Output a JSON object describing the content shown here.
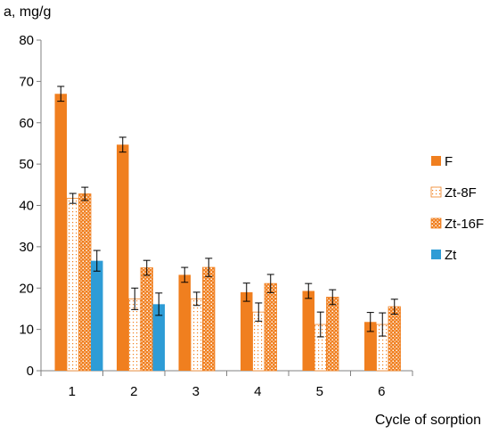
{
  "chart_data": {
    "type": "bar",
    "categories": [
      "1",
      "2",
      "3",
      "4",
      "5",
      "6"
    ],
    "ylabel": "a, mg/g",
    "xlabel": "Cycle of sorption",
    "ylim": [
      0,
      80
    ],
    "yticks": [
      0,
      10,
      20,
      30,
      40,
      50,
      60,
      70,
      80
    ],
    "grid": false,
    "legend_position": "right",
    "series": [
      {
        "name": "F",
        "pattern": "solid",
        "color": "#F07F1F",
        "values": [
          67,
          54.7,
          23.2,
          19,
          19.3,
          11.8
        ],
        "errors": [
          1.8,
          1.8,
          1.8,
          2.2,
          1.8,
          2.3
        ]
      },
      {
        "name": "Zt-8F",
        "pattern": "dotted-light",
        "color": "#F07F1F",
        "values": [
          41.7,
          17.4,
          17.4,
          14.2,
          11.2,
          11.2
        ],
        "errors": [
          1.2,
          2.6,
          1.6,
          2.2,
          3.0,
          2.8
        ]
      },
      {
        "name": "Zt-16F",
        "pattern": "dotted-dense",
        "color": "#F07F1F",
        "values": [
          42.8,
          24.9,
          25,
          21.1,
          17.8,
          15.5
        ],
        "errors": [
          1.6,
          1.8,
          2.2,
          2.2,
          1.8,
          1.8
        ]
      },
      {
        "name": "Zt",
        "pattern": "solid",
        "color": "#2E9CD6",
        "values": [
          26.6,
          16.1,
          null,
          null,
          null,
          null
        ],
        "errors": [
          2.5,
          2.7,
          null,
          null,
          null,
          null
        ]
      }
    ]
  }
}
